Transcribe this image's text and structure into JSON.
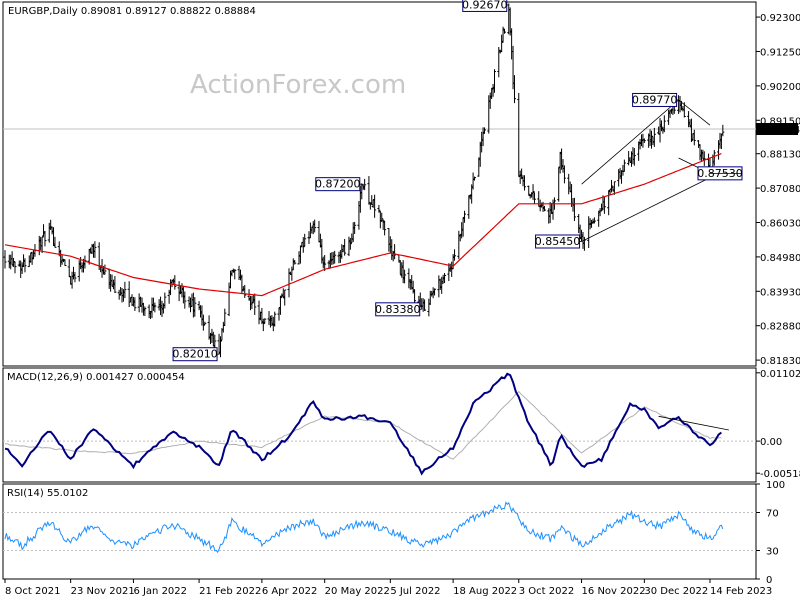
{
  "header": {
    "main_title": "EURGBP,Daily  0.89081 0.89127 0.88822 0.88884",
    "macd_title": "MACD(12,26,9) 0.001427 0.000454",
    "rsi_title": "RSI(14) 55.0102"
  },
  "watermark": "ActionForex.com",
  "colors": {
    "price_bars": "#000000",
    "moving_average": "#e00000",
    "macd_line": "#000080",
    "signal_line": "#b0b0b0",
    "rsi_line": "#1e90ff",
    "grid": "#c0c0c0",
    "current_price_tag": "#000000"
  },
  "chart_data": [
    {
      "type": "ohlc",
      "panel": "price",
      "title": "EURGBP,Daily",
      "ylim": [
        0.8165,
        0.9276
      ],
      "y_ticks": [
        "0.92300",
        "0.91250",
        "0.90200",
        "0.89150",
        "0.88130",
        "0.87080",
        "0.86030",
        "0.84980",
        "0.83930",
        "0.82880",
        "0.81830"
      ],
      "current_price": "0.88884",
      "series_close_keypoints": [
        {
          "date": "8 Oct 2021",
          "close": 0.85
        },
        {
          "date": "20 Oct 2021",
          "close": 0.847
        },
        {
          "date": "8 Nov 2021",
          "close": 0.858
        },
        {
          "date": "23 Nov 2021",
          "close": 0.843
        },
        {
          "date": "8 Dec 2021",
          "close": 0.853
        },
        {
          "date": "20 Dec 2021",
          "close": 0.842
        },
        {
          "date": "6 Jan 2022",
          "close": 0.836
        },
        {
          "date": "25 Jan 2022",
          "close": 0.833
        },
        {
          "date": "2 Feb 2022",
          "close": 0.842
        },
        {
          "date": "21 Feb 2022",
          "close": 0.833
        },
        {
          "date": "7 Mar 2022",
          "close": 0.8201
        },
        {
          "date": "16 Mar 2022",
          "close": 0.846
        },
        {
          "date": "6 Apr 2022",
          "close": 0.831
        },
        {
          "date": "14 Apr 2022",
          "close": 0.83
        },
        {
          "date": "26 Apr 2022",
          "close": 0.845
        },
        {
          "date": "12 May 2022",
          "close": 0.86
        },
        {
          "date": "20 May 2022",
          "close": 0.846
        },
        {
          "date": "8 Jun 2022",
          "close": 0.855
        },
        {
          "date": "15 Jun 2022",
          "close": 0.872
        },
        {
          "date": "30 Jun 2022",
          "close": 0.86
        },
        {
          "date": "5 Jul 2022",
          "close": 0.852
        },
        {
          "date": "27 Jul 2022",
          "close": 0.8338
        },
        {
          "date": "18 Aug 2022",
          "close": 0.848
        },
        {
          "date": "1 Sep 2022",
          "close": 0.872
        },
        {
          "date": "26 Sep 2022",
          "close": 0.9267
        },
        {
          "date": "3 Oct 2022",
          "close": 0.875
        },
        {
          "date": "10 Oct 2022",
          "close": 0.87
        },
        {
          "date": "26 Oct 2022",
          "close": 0.862
        },
        {
          "date": "1 Nov 2022",
          "close": 0.88
        },
        {
          "date": "16 Nov 2022",
          "close": 0.8545
        },
        {
          "date": "30 Nov 2022",
          "close": 0.865
        },
        {
          "date": "20 Dec 2022",
          "close": 0.88
        },
        {
          "date": "30 Dec 2022",
          "close": 0.885
        },
        {
          "date": "10 Jan 2023",
          "close": 0.888
        },
        {
          "date": "23 Jan 2023",
          "close": 0.8977
        },
        {
          "date": "2 Feb 2023",
          "close": 0.886
        },
        {
          "date": "14 Feb 2023",
          "close": 0.8753
        },
        {
          "date": "23 Feb 2023",
          "close": 0.8888
        }
      ],
      "moving_average_keypoints": [
        {
          "date": "8 Oct 2021",
          "value": 0.8535
        },
        {
          "date": "23 Nov 2021",
          "value": 0.85
        },
        {
          "date": "6 Jan 2022",
          "value": 0.8435
        },
        {
          "date": "21 Feb 2022",
          "value": 0.84
        },
        {
          "date": "6 Apr 2022",
          "value": 0.838
        },
        {
          "date": "20 May 2022",
          "value": 0.846
        },
        {
          "date": "5 Jul 2022",
          "value": 0.851
        },
        {
          "date": "18 Aug 2022",
          "value": 0.847
        },
        {
          "date": "3 Oct 2022",
          "value": 0.866
        },
        {
          "date": "16 Nov 2022",
          "value": 0.866
        },
        {
          "date": "30 Dec 2022",
          "value": 0.872
        },
        {
          "date": "14 Feb 2023",
          "value": 0.88
        },
        {
          "date": "23 Feb 2023",
          "value": 0.8815
        }
      ],
      "annotations": [
        {
          "label": "0.82010",
          "date": "7 Mar 2022",
          "price": 0.8201
        },
        {
          "label": "0.87200",
          "date": "15 Jun 2022",
          "price": 0.872
        },
        {
          "label": "0.83380",
          "date": "27 Jul 2022",
          "price": 0.8338
        },
        {
          "label": "0.92670",
          "date": "26 Sep 2022",
          "price": 0.9267
        },
        {
          "label": "0.85450",
          "date": "16 Nov 2022",
          "price": 0.8545
        },
        {
          "label": "0.89770",
          "date": "23 Jan 2023",
          "price": 0.8977
        },
        {
          "label": "0.87530",
          "date": "14 Feb 2023",
          "price": 0.8753
        }
      ],
      "channel": {
        "lower": [
          {
            "date": "16 Nov 2022",
            "price": 0.8545
          },
          {
            "date": "14 Feb 2023",
            "price": 0.874
          }
        ],
        "upper": [
          {
            "date": "16 Nov 2022",
            "price": 0.872
          },
          {
            "date": "23 Jan 2023",
            "price": 0.8977
          },
          {
            "date": "14 Feb 2023",
            "price": 0.89
          }
        ],
        "lower2": [
          {
            "date": "23 Jan 2023",
            "price": 0.88
          },
          {
            "date": "14 Feb 2023",
            "price": 0.8753
          }
        ]
      },
      "grid": true
    },
    {
      "type": "line",
      "panel": "macd",
      "title": "MACD(12,26,9)",
      "ylim": [
        -0.0066,
        0.0118
      ],
      "y_ticks": [
        "0.011023",
        "0.00",
        "-0.005182"
      ],
      "series": [
        {
          "name": "MACD",
          "keypoints": [
            {
              "date": "8 Oct 2021",
              "value": -0.001
            },
            {
              "date": "20 Oct 2021",
              "value": -0.004
            },
            {
              "date": "8 Nov 2021",
              "value": 0.002
            },
            {
              "date": "23 Nov 2021",
              "value": -0.003
            },
            {
              "date": "8 Dec 2021",
              "value": 0.002
            },
            {
              "date": "6 Jan 2022",
              "value": -0.004
            },
            {
              "date": "2 Feb 2022",
              "value": 0.0015
            },
            {
              "date": "21 Feb 2022",
              "value": -0.001
            },
            {
              "date": "7 Mar 2022",
              "value": -0.004
            },
            {
              "date": "16 Mar 2022",
              "value": 0.002
            },
            {
              "date": "6 Apr 2022",
              "value": -0.003
            },
            {
              "date": "26 Apr 2022",
              "value": 0.001
            },
            {
              "date": "12 May 2022",
              "value": 0.0065
            },
            {
              "date": "20 May 2022",
              "value": 0.0035
            },
            {
              "date": "15 Jun 2022",
              "value": 0.004
            },
            {
              "date": "5 Jul 2022",
              "value": 0.003
            },
            {
              "date": "27 Jul 2022",
              "value": -0.005
            },
            {
              "date": "18 Aug 2022",
              "value": -0.001
            },
            {
              "date": "1 Sep 2022",
              "value": 0.006
            },
            {
              "date": "26 Sep 2022",
              "value": 0.011
            },
            {
              "date": "10 Oct 2022",
              "value": 0.003
            },
            {
              "date": "26 Oct 2022",
              "value": -0.004
            },
            {
              "date": "1 Nov 2022",
              "value": 0.001
            },
            {
              "date": "16 Nov 2022",
              "value": -0.004
            },
            {
              "date": "30 Nov 2022",
              "value": -0.003
            },
            {
              "date": "20 Dec 2022",
              "value": 0.006
            },
            {
              "date": "30 Dec 2022",
              "value": 0.005
            },
            {
              "date": "10 Jan 2023",
              "value": 0.002
            },
            {
              "date": "23 Jan 2023",
              "value": 0.004
            },
            {
              "date": "2 Feb 2023",
              "value": 0.0015
            },
            {
              "date": "14 Feb 2023",
              "value": -0.0005
            },
            {
              "date": "23 Feb 2023",
              "value": 0.0014
            }
          ]
        },
        {
          "name": "Signal",
          "keypoints": [
            {
              "date": "8 Oct 2021",
              "value": -0.0005
            },
            {
              "date": "23 Nov 2021",
              "value": -0.0015
            },
            {
              "date": "6 Jan 2022",
              "value": -0.002
            },
            {
              "date": "21 Feb 2022",
              "value": 0.0
            },
            {
              "date": "6 Apr 2022",
              "value": -0.001
            },
            {
              "date": "20 May 2022",
              "value": 0.004
            },
            {
              "date": "5 Jul 2022",
              "value": 0.003
            },
            {
              "date": "18 Aug 2022",
              "value": -0.003
            },
            {
              "date": "3 Oct 2022",
              "value": 0.008
            },
            {
              "date": "16 Nov 2022",
              "value": -0.002
            },
            {
              "date": "30 Dec 2022",
              "value": 0.0055
            },
            {
              "date": "14 Feb 2023",
              "value": 0.0005
            },
            {
              "date": "23 Feb 2023",
              "value": 0.0005
            }
          ]
        }
      ],
      "grid": true
    },
    {
      "type": "line",
      "panel": "rsi",
      "title": "RSI(14)",
      "ylim": [
        0,
        100
      ],
      "y_ticks": [
        "100",
        "70",
        "30",
        "0"
      ],
      "series": [
        {
          "name": "RSI(14)",
          "keypoints": [
            {
              "date": "8 Oct 2021",
              "value": 45
            },
            {
              "date": "20 Oct 2021",
              "value": 35
            },
            {
              "date": "8 Nov 2021",
              "value": 60
            },
            {
              "date": "23 Nov 2021",
              "value": 38
            },
            {
              "date": "8 Dec 2021",
              "value": 58
            },
            {
              "date": "20 Dec 2021",
              "value": 40
            },
            {
              "date": "6 Jan 2022",
              "value": 35
            },
            {
              "date": "2 Feb 2022",
              "value": 58
            },
            {
              "date": "21 Feb 2022",
              "value": 42
            },
            {
              "date": "7 Mar 2022",
              "value": 30
            },
            {
              "date": "16 Mar 2022",
              "value": 60
            },
            {
              "date": "6 Apr 2022",
              "value": 38
            },
            {
              "date": "26 Apr 2022",
              "value": 55
            },
            {
              "date": "12 May 2022",
              "value": 62
            },
            {
              "date": "20 May 2022",
              "value": 45
            },
            {
              "date": "15 Jun 2022",
              "value": 60
            },
            {
              "date": "5 Jul 2022",
              "value": 50
            },
            {
              "date": "27 Jul 2022",
              "value": 35
            },
            {
              "date": "18 Aug 2022",
              "value": 48
            },
            {
              "date": "1 Sep 2022",
              "value": 65
            },
            {
              "date": "26 Sep 2022",
              "value": 78
            },
            {
              "date": "10 Oct 2022",
              "value": 50
            },
            {
              "date": "26 Oct 2022",
              "value": 42
            },
            {
              "date": "1 Nov 2022",
              "value": 55
            },
            {
              "date": "16 Nov 2022",
              "value": 35
            },
            {
              "date": "30 Nov 2022",
              "value": 50
            },
            {
              "date": "20 Dec 2022",
              "value": 68
            },
            {
              "date": "30 Dec 2022",
              "value": 60
            },
            {
              "date": "10 Jan 2023",
              "value": 55
            },
            {
              "date": "23 Jan 2023",
              "value": 68
            },
            {
              "date": "2 Feb 2023",
              "value": 50
            },
            {
              "date": "14 Feb 2023",
              "value": 42
            },
            {
              "date": "23 Feb 2023",
              "value": 55
            }
          ]
        }
      ],
      "levels": [
        70,
        30
      ],
      "grid": true
    }
  ],
  "x_axis": {
    "tick_labels": [
      "8 Oct 2021",
      "23 Nov 2021",
      "6 Jan 2022",
      "21 Feb 2022",
      "6 Apr 2022",
      "20 May 2022",
      "5 Jul 2022",
      "18 Aug 2022",
      "3 Oct 2022",
      "16 Nov 2022",
      "30 Dec 2022",
      "14 Feb 2023"
    ]
  }
}
